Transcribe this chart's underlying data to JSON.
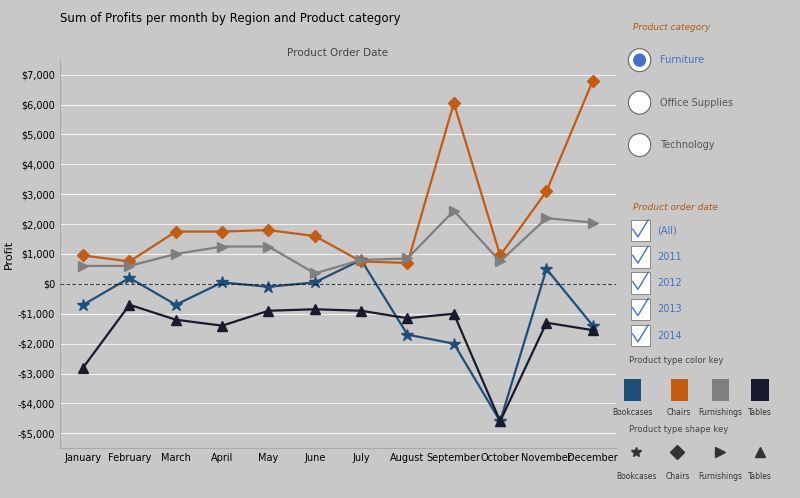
{
  "title": "Sum of Profits per month by Region and Product category",
  "xlabel_top": "Product Order Date",
  "ylabel": "Profit",
  "background_color": "#c8c8c8",
  "plot_bg_color": "#c8c8c8",
  "months": [
    "January",
    "February",
    "March",
    "April",
    "May",
    "June",
    "July",
    "August",
    "September",
    "October",
    "November",
    "December"
  ],
  "series_order": [
    "Bookcases",
    "Chairs",
    "Furnishings",
    "Tables"
  ],
  "series": {
    "Bookcases": {
      "color": "#1f4e79",
      "values": [
        -700,
        200,
        -700,
        50,
        -100,
        50,
        800,
        -1700,
        -2000,
        -4600,
        500,
        -1400
      ],
      "marker": "star"
    },
    "Chairs": {
      "color": "#c55a11",
      "values": [
        950,
        750,
        1750,
        1750,
        1800,
        1600,
        750,
        700,
        6050,
        950,
        3100,
        6800
      ],
      "marker": "diamond"
    },
    "Furnishings": {
      "color": "#7f7f7f",
      "values": [
        600,
        600,
        1000,
        1250,
        1250,
        350,
        800,
        850,
        2450,
        750,
        2200,
        2050
      ],
      "marker": "triangle_right"
    },
    "Tables": {
      "color": "#1a1a2e",
      "values": [
        -2800,
        -700,
        -1200,
        -1400,
        -900,
        -850,
        -900,
        -1150,
        -1000,
        -4600,
        -1300,
        -1550
      ],
      "marker": "triangle_up"
    }
  },
  "ylim": [
    -5500,
    7500
  ],
  "yticks": [
    -5000,
    -4000,
    -3000,
    -2000,
    -1000,
    0,
    1000,
    2000,
    3000,
    4000,
    5000,
    6000,
    7000
  ],
  "ytick_labels": [
    "-$5,000",
    "-$4,000",
    "-$3,000",
    "-$2,000",
    "-$1,000",
    "$0",
    "$1,000",
    "$2,000",
    "$3,000",
    "$4,000",
    "$5,000",
    "$6,000",
    "$7,000"
  ],
  "legend_color_items": [
    {
      "label": "Bookcases",
      "color": "#1f4e79"
    },
    {
      "label": "Chairs",
      "color": "#c55a11"
    },
    {
      "label": "Furnishings",
      "color": "#7f7f7f"
    },
    {
      "label": "Tables",
      "color": "#1a1a2e"
    }
  ],
  "legend_shape_items": [
    {
      "label": "Bookcases",
      "marker": "star"
    },
    {
      "label": "Chairs",
      "marker": "diamond"
    },
    {
      "label": "Furnishings",
      "marker": "triangle_right"
    },
    {
      "label": "Tables",
      "marker": "triangle_up"
    }
  ],
  "filter1_title": "Product category",
  "filter1_items": [
    "Furniture",
    "Office Supplies",
    "Technology"
  ],
  "filter1_selected": "Furniture",
  "filter2_title": "Product order date",
  "filter2_items": [
    "(All)",
    "2011",
    "2012",
    "2013",
    "2014"
  ],
  "accent_color": "#4472c4",
  "panel_bg": "#e8e8e8",
  "filter_bg": "#ffffff"
}
